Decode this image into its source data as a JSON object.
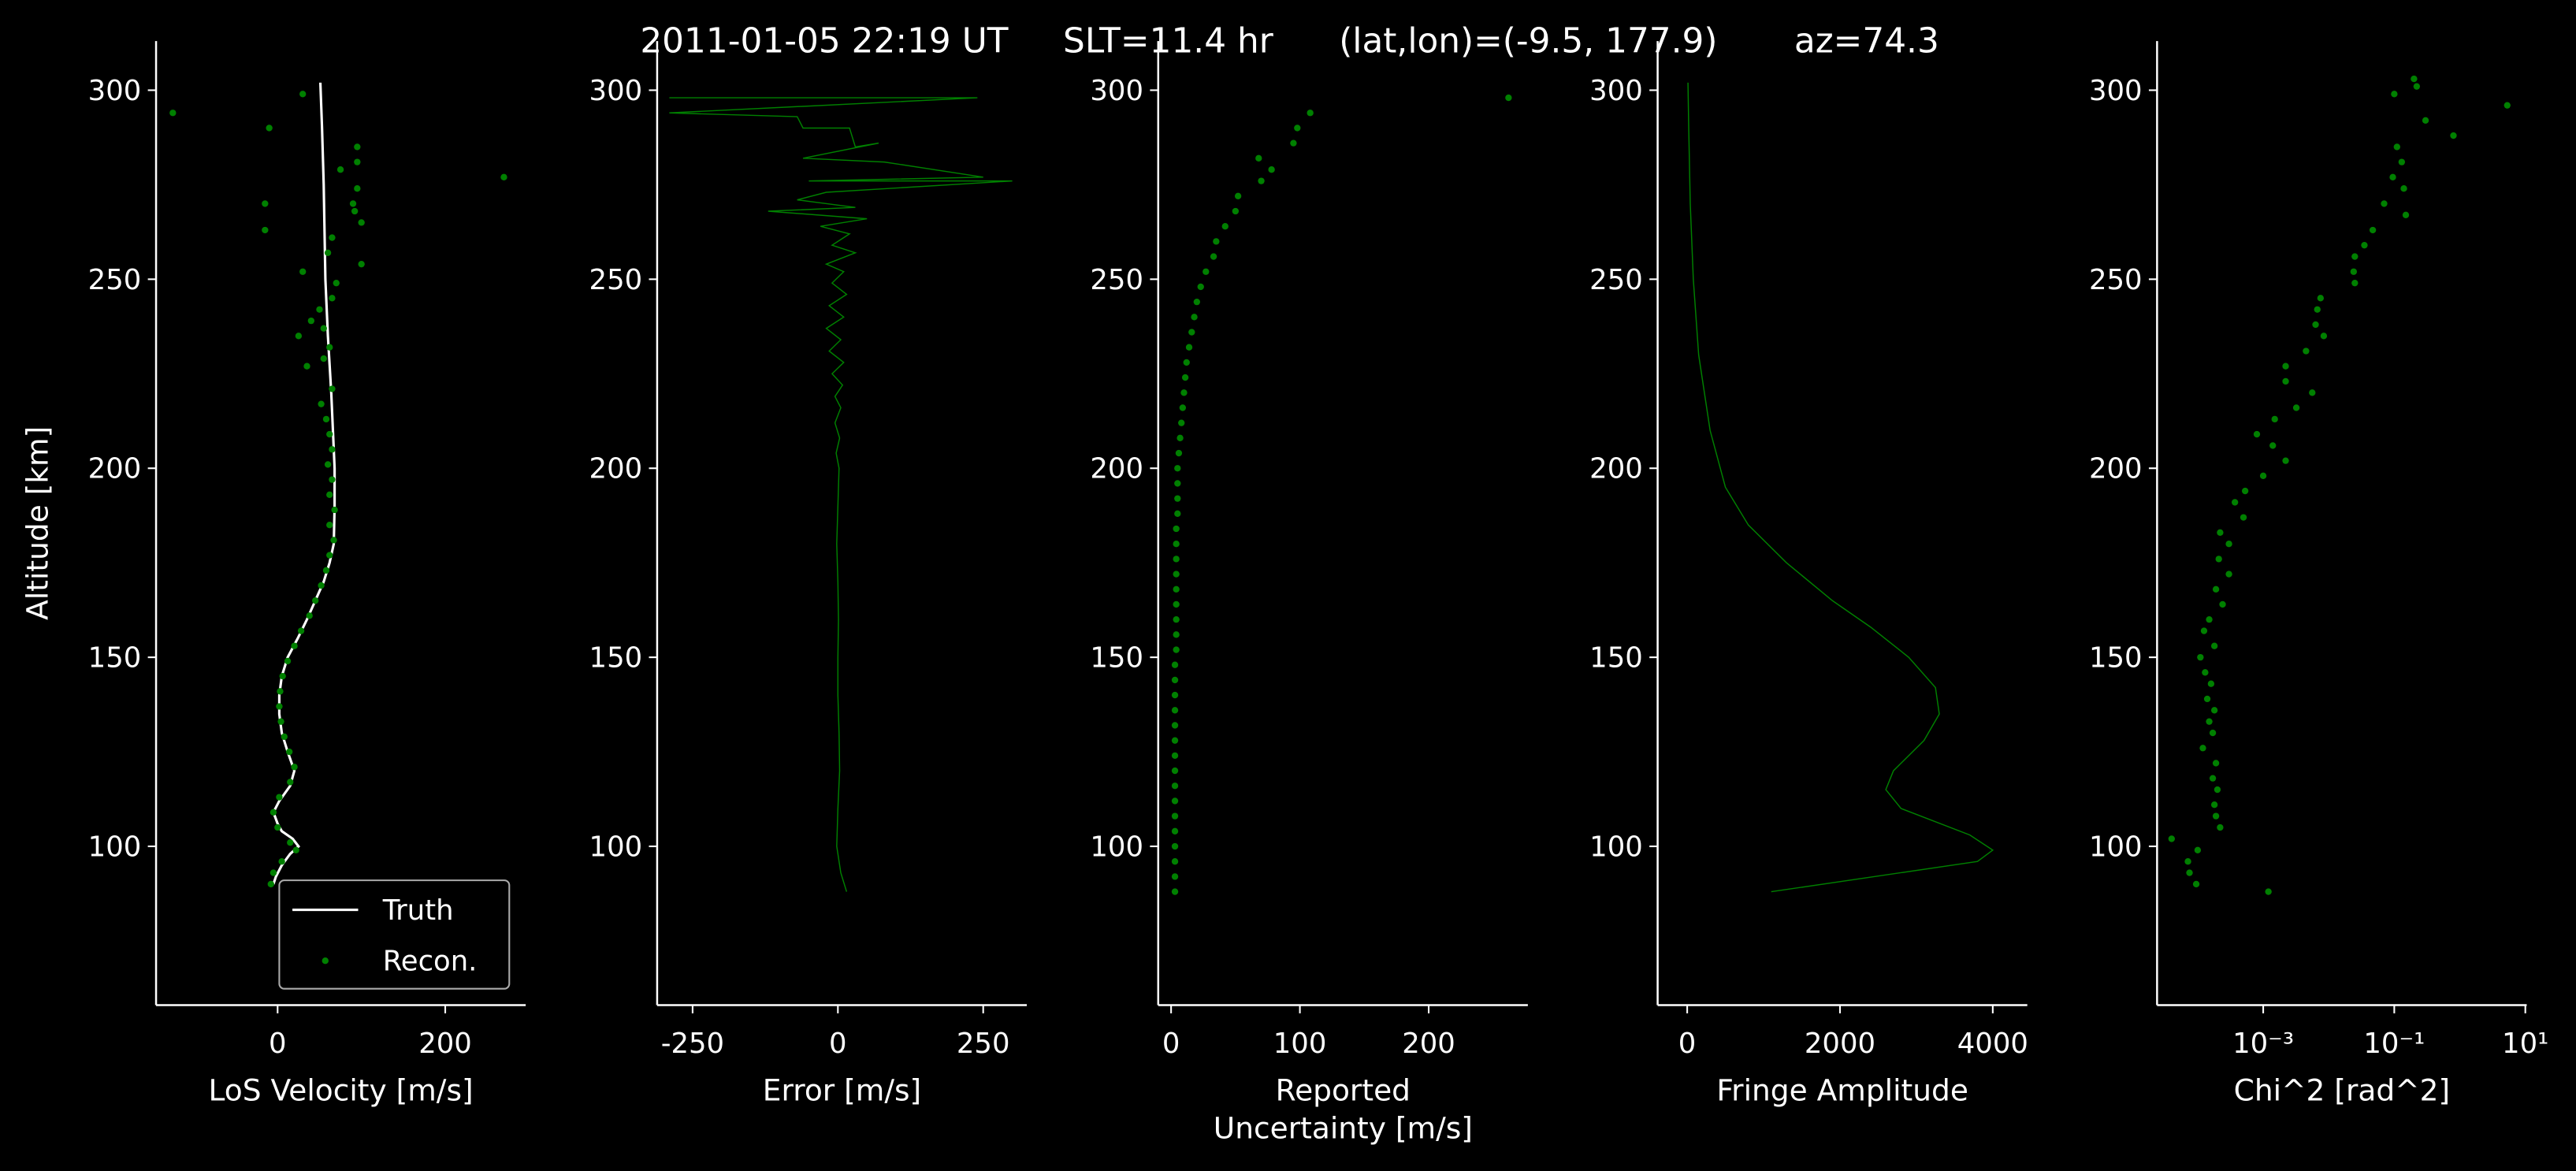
{
  "suptitle": "2011-01-05 22:19 UT     SLT=11.4 hr      (lat,lon)=(-9.5, 177.9)       az=74.3",
  "chart_data": [
    {
      "type": "profile",
      "xlabel": [
        "LoS Velocity [m/s]"
      ],
      "ylabel": "Altitude [km]",
      "xlim": [
        -145,
        296
      ],
      "ylim": [
        58,
        313
      ],
      "xticks": [
        0,
        200
      ],
      "yticks": [
        100,
        150,
        200,
        250,
        300
      ],
      "legend": "lower right",
      "series": [
        {
          "name": "Truth",
          "style": "line",
          "color": "#ffffff",
          "x": [
            51,
            53,
            55,
            57,
            60,
            64,
            68,
            68,
            67,
            62,
            55,
            45,
            35,
            24,
            12,
            5,
            2,
            2,
            5,
            12,
            20,
            15,
            2,
            -5,
            0,
            5,
            18,
            25,
            15,
            5,
            -2,
            -5
          ],
          "y": [
            302,
            290,
            275,
            250,
            235,
            220,
            200,
            190,
            180,
            175,
            170,
            165,
            160,
            155,
            150,
            145,
            140,
            135,
            130,
            125,
            120,
            116,
            112,
            109,
            106,
            104,
            102,
            100,
            98,
            95,
            92,
            90
          ]
        },
        {
          "name": "Recon.",
          "style": "scatter",
          "color": "#008000",
          "x": [
            -125,
            -10,
            30,
            270,
            -15,
            -15,
            95,
            95,
            75,
            95,
            90,
            100,
            92,
            65,
            60,
            100,
            30,
            70,
            65,
            50,
            40,
            55,
            25,
            62,
            55,
            35,
            65,
            52,
            58,
            62,
            65,
            60,
            65,
            62,
            68,
            62,
            67,
            62,
            58,
            52,
            45,
            38,
            28,
            20,
            12,
            6,
            3,
            2,
            4,
            8,
            14,
            20,
            15,
            2,
            -5,
            0,
            15,
            22,
            5,
            -5,
            -8
          ],
          "y": [
            294,
            290,
            299,
            277,
            270,
            263,
            285,
            281,
            279,
            274,
            270,
            265,
            268,
            261,
            257,
            254,
            252,
            249,
            245,
            242,
            239,
            237,
            235,
            232,
            229,
            227,
            221,
            217,
            213,
            209,
            205,
            201,
            197,
            193,
            189,
            185,
            181,
            177,
            173,
            169,
            165,
            161,
            157,
            153,
            149,
            145,
            141,
            137,
            133,
            129,
            125,
            121,
            117,
            113,
            109,
            105,
            101,
            99,
            96,
            93,
            90
          ]
        }
      ]
    },
    {
      "type": "profile",
      "xlabel": [
        "Error [m/s]"
      ],
      "xlim": [
        -311,
        325
      ],
      "ylim": [
        58,
        313
      ],
      "xticks": [
        -250,
        0,
        250
      ],
      "yticks": [
        100,
        150,
        200,
        250,
        300
      ],
      "series": [
        {
          "style": "line",
          "color": "#008000",
          "x": [
            -290,
            240,
            -290,
            -70,
            -60,
            20,
            30,
            70,
            -60,
            80,
            250,
            -50,
            300,
            -20,
            -70,
            30,
            -120,
            50,
            -30,
            20,
            -10,
            30,
            -20,
            10,
            -10,
            15,
            -15,
            10,
            -20,
            5,
            -15,
            10,
            -10,
            8,
            -5,
            5,
            -5,
            3,
            -3,
            2,
            0,
            -2,
            0,
            1,
            0,
            0,
            2,
            3,
            0,
            -2,
            5,
            15
          ],
          "y": [
            298,
            298,
            294,
            293,
            290,
            290,
            285,
            286,
            282,
            281,
            277,
            276,
            276,
            273,
            271,
            269,
            268,
            266,
            264,
            262,
            259,
            257,
            254,
            252,
            249,
            246,
            243,
            240,
            237,
            234,
            231,
            228,
            225,
            222,
            219,
            216,
            212,
            208,
            204,
            200,
            190,
            180,
            170,
            160,
            150,
            140,
            130,
            120,
            110,
            100,
            93,
            88
          ]
        }
      ]
    },
    {
      "type": "profile",
      "xlabel": [
        "Reported",
        "Uncertainty [m/s]"
      ],
      "xlim": [
        -10,
        277
      ],
      "ylim": [
        58,
        313
      ],
      "xticks": [
        0,
        100,
        200
      ],
      "yticks": [
        100,
        150,
        200,
        250,
        300
      ],
      "series": [
        {
          "style": "scatter",
          "color": "#008000",
          "x": [
            3,
            3,
            3,
            3,
            3,
            3,
            3,
            3,
            3,
            3,
            3,
            3,
            3,
            3,
            3,
            3,
            4,
            4,
            4,
            4,
            4,
            4,
            4,
            4,
            4,
            5,
            5,
            5,
            5,
            6,
            7,
            8,
            9,
            10,
            11,
            12,
            14,
            16,
            18,
            20,
            23,
            27,
            33,
            35,
            42,
            50,
            52,
            70,
            78,
            68,
            95,
            98,
            108,
            262
          ],
          "y": [
            88,
            92,
            96,
            100,
            104,
            108,
            112,
            116,
            120,
            124,
            128,
            132,
            136,
            140,
            144,
            148,
            152,
            156,
            160,
            164,
            168,
            172,
            176,
            180,
            184,
            188,
            192,
            196,
            200,
            204,
            208,
            212,
            216,
            220,
            224,
            228,
            232,
            236,
            240,
            244,
            248,
            252,
            256,
            260,
            264,
            268,
            272,
            276,
            279,
            282,
            286,
            290,
            294,
            298
          ]
        }
      ]
    },
    {
      "type": "profile",
      "xlabel": [
        "Fringe Amplitude"
      ],
      "xlim": [
        -387,
        4452
      ],
      "ylim": [
        58,
        313
      ],
      "xticks": [
        0,
        2000,
        4000
      ],
      "yticks": [
        100,
        150,
        200,
        250,
        300
      ],
      "series": [
        {
          "style": "line",
          "color": "#008000",
          "x": [
            1100,
            3800,
            4000,
            3700,
            2800,
            2600,
            2700,
            3100,
            3300,
            3250,
            2900,
            2400,
            1900,
            1300,
            800,
            500,
            300,
            150,
            80,
            40,
            20,
            10
          ],
          "y": [
            88,
            96,
            99,
            103,
            110,
            115,
            120,
            128,
            135,
            142,
            150,
            158,
            165,
            175,
            185,
            195,
            210,
            230,
            250,
            270,
            290,
            302
          ]
        }
      ]
    },
    {
      "type": "profile",
      "xlabel": [
        "Chi^2 [rad^2]"
      ],
      "xscale": "log",
      "xlim": [
        2.4e-05,
        10.5
      ],
      "ylim": [
        58,
        313
      ],
      "xticks": [
        {
          "value": 0.001,
          "label": "10⁻³"
        },
        {
          "value": 0.1,
          "label": "10⁻¹"
        },
        {
          "value": 10,
          "label": "10¹"
        }
      ],
      "yticks": [
        100,
        150,
        200,
        250,
        300
      ],
      "series": [
        {
          "style": "scatter",
          "color": "#008000",
          "x": [
            0.0012,
            9.5e-05,
            7.5e-05,
            7.1e-05,
            0.0001,
            4e-05,
            0.00022,
            0.00019,
            0.00018,
            0.0002,
            0.00017,
            0.00019,
            0.00012,
            0.00017,
            0.00015,
            0.00018,
            0.00014,
            0.00016,
            0.00013,
            0.00011,
            0.00018,
            0.000125,
            0.00015,
            0.00024,
            0.00019,
            0.0003,
            0.00021,
            0.0003,
            0.00022,
            0.0005,
            0.00037,
            0.00053,
            0.001,
            0.0022,
            0.0014,
            0.0008,
            0.0015,
            0.0032,
            0.0056,
            0.0022,
            0.0022,
            0.0045,
            0.0084,
            0.0063,
            0.0067,
            0.0075,
            0.025,
            0.024,
            0.025,
            0.035,
            0.047,
            0.15,
            0.07,
            0.14,
            0.095,
            0.13,
            0.11,
            0.8,
            0.3,
            5.3,
            0.1,
            0.22,
            0.2
          ],
          "y": [
            88,
            90,
            93,
            96,
            99,
            102,
            105,
            108,
            111,
            115,
            118,
            122,
            126,
            130,
            133,
            136,
            139,
            143,
            146,
            150,
            153,
            157,
            160,
            164,
            168,
            172,
            176,
            180,
            183,
            187,
            191,
            194,
            198,
            202,
            206,
            209,
            213,
            216,
            220,
            223,
            227,
            231,
            235,
            238,
            242,
            245,
            249,
            252,
            256,
            259,
            263,
            267,
            270,
            274,
            277,
            281,
            285,
            288,
            292,
            296,
            299,
            301,
            303
          ]
        }
      ]
    }
  ]
}
